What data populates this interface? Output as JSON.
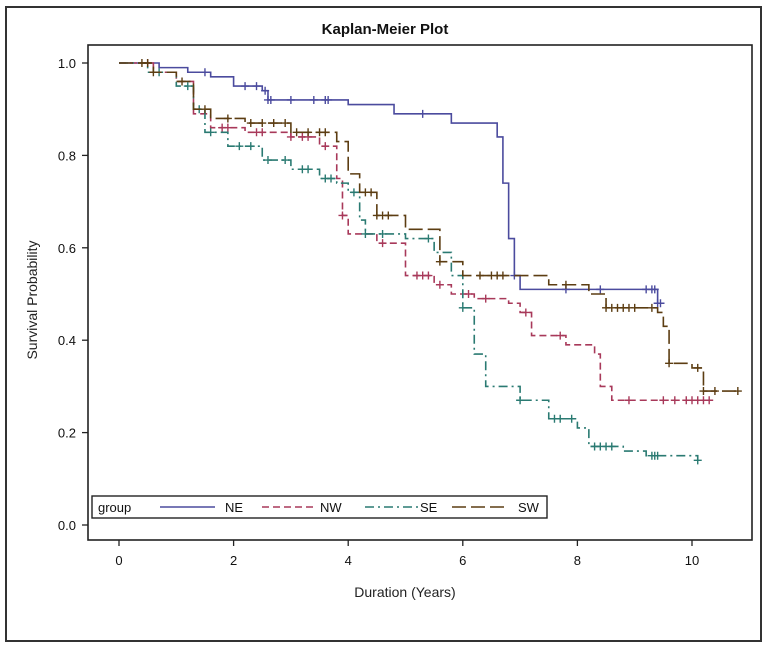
{
  "chart_data": {
    "type": "line",
    "subtype": "kaplan-meier step",
    "title": "Kaplan-Meier Plot",
    "xlabel": "Duration (Years)",
    "ylabel": "Survival Probability",
    "xlim": [
      -0.55,
      11.0
    ],
    "ylim": [
      -0.03,
      1.04
    ],
    "xticks": [
      0,
      2,
      4,
      6,
      8,
      10
    ],
    "xtick_labels": [
      "0",
      "2",
      "4",
      "6",
      "8",
      "10"
    ],
    "yticks": [
      0.0,
      0.2,
      0.4,
      0.6,
      0.8,
      1.0
    ],
    "ytick_labels": [
      "0.0",
      "0.2",
      "0.4",
      "0.6",
      "0.8",
      "1.0"
    ],
    "grid": false,
    "legend": {
      "title": "group",
      "position": "bottom-inside",
      "entries": [
        "NE",
        "NW",
        "SE",
        "SW"
      ]
    },
    "series": [
      {
        "name": "NE",
        "color": "#4b4b9e",
        "dash": "solid",
        "x": [
          0,
          0.7,
          1.2,
          1.6,
          2.0,
          2.5,
          2.6,
          3.7,
          4.0,
          4.8,
          5.8,
          6.5,
          6.6,
          6.7,
          6.8,
          6.9,
          7.0,
          9.4,
          9.5
        ],
        "y": [
          1.0,
          0.99,
          0.98,
          0.97,
          0.95,
          0.94,
          0.92,
          0.92,
          0.91,
          0.89,
          0.87,
          0.87,
          0.84,
          0.74,
          0.62,
          0.54,
          0.51,
          0.48,
          0.48
        ],
        "censored_x": [
          1.5,
          2.2,
          2.4,
          2.55,
          2.6,
          2.65,
          3.0,
          3.4,
          3.6,
          3.65,
          5.3,
          6.9,
          7.8,
          8.4,
          9.2,
          9.3,
          9.35,
          9.4,
          9.45
        ]
      },
      {
        "name": "NW",
        "color": "#a8395a",
        "dash": "dashed",
        "x": [
          0,
          0.6,
          1.0,
          1.3,
          1.6,
          2.2,
          3.0,
          3.5,
          3.8,
          3.9,
          4.0,
          4.5,
          5.0,
          5.5,
          5.8,
          6.2,
          6.8,
          7.0,
          7.2,
          7.8,
          8.3,
          8.4,
          8.6,
          10.4
        ],
        "y": [
          1.0,
          0.98,
          0.96,
          0.89,
          0.86,
          0.85,
          0.84,
          0.82,
          0.75,
          0.67,
          0.63,
          0.61,
          0.54,
          0.52,
          0.5,
          0.49,
          0.48,
          0.46,
          0.41,
          0.39,
          0.37,
          0.3,
          0.27,
          0.27
        ],
        "censored_x": [
          0.5,
          1.8,
          1.9,
          2.4,
          2.5,
          3.0,
          3.2,
          3.3,
          3.6,
          3.9,
          4.6,
          5.2,
          5.3,
          5.4,
          5.6,
          6.1,
          6.4,
          7.1,
          7.7,
          8.9,
          9.5,
          9.7,
          9.9,
          10.0,
          10.1,
          10.2,
          10.3
        ]
      },
      {
        "name": "SE",
        "color": "#2a7a72",
        "dash": "dashdot",
        "x": [
          0,
          0.5,
          1.0,
          1.3,
          1.5,
          1.9,
          2.5,
          3.0,
          3.5,
          3.8,
          4.0,
          4.2,
          4.3,
          5.0,
          5.5,
          5.8,
          6.0,
          6.2,
          6.4,
          7.0,
          7.5,
          8.0,
          8.2,
          8.8,
          9.2,
          10.1
        ],
        "y": [
          1.0,
          0.98,
          0.95,
          0.9,
          0.85,
          0.82,
          0.79,
          0.77,
          0.75,
          0.74,
          0.72,
          0.66,
          0.63,
          0.62,
          0.59,
          0.54,
          0.47,
          0.37,
          0.3,
          0.27,
          0.23,
          0.21,
          0.17,
          0.16,
          0.15,
          0.14
        ],
        "censored_x": [
          0.7,
          1.2,
          1.4,
          1.6,
          2.1,
          2.3,
          2.6,
          2.9,
          3.2,
          3.3,
          3.6,
          3.7,
          4.1,
          4.3,
          4.6,
          5.4,
          6.0,
          7.0,
          7.6,
          7.7,
          7.9,
          8.3,
          8.4,
          8.5,
          8.6,
          9.3,
          9.35,
          9.4,
          10.1
        ]
      },
      {
        "name": "SW",
        "color": "#5c3d12",
        "dash": "longdash",
        "x": [
          0,
          0.6,
          1.0,
          1.3,
          1.6,
          2.2,
          3.0,
          3.8,
          4.0,
          4.2,
          4.5,
          5.0,
          5.6,
          6.0,
          7.0,
          7.5,
          8.2,
          8.5,
          9.4,
          9.5,
          9.6,
          10.0,
          10.2,
          10.8
        ],
        "y": [
          1.0,
          0.98,
          0.96,
          0.9,
          0.88,
          0.87,
          0.85,
          0.83,
          0.76,
          0.72,
          0.67,
          0.64,
          0.57,
          0.54,
          0.54,
          0.52,
          0.5,
          0.47,
          0.46,
          0.43,
          0.35,
          0.34,
          0.29,
          0.29
        ],
        "censored_x": [
          0.4,
          0.5,
          0.6,
          1.1,
          1.5,
          1.9,
          2.3,
          2.5,
          2.7,
          2.9,
          3.1,
          3.3,
          3.5,
          3.6,
          4.3,
          4.4,
          4.5,
          4.6,
          4.7,
          5.6,
          6.3,
          6.5,
          6.6,
          6.7,
          7.8,
          8.5,
          8.6,
          8.7,
          8.8,
          8.9,
          9.0,
          9.3,
          9.6,
          10.1,
          10.2,
          10.4,
          10.8
        ]
      }
    ]
  }
}
